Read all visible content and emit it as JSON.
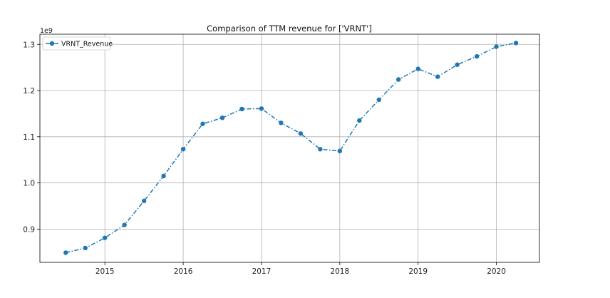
{
  "chart_data": {
    "type": "line",
    "title": "Comparison of TTM revenue for ['VRNT']",
    "xlabel": "",
    "ylabel": "",
    "y_offset_label": "1e9",
    "xlim": [
      2014.17,
      2020.55
    ],
    "ylim": [
      0.828,
      1.322
    ],
    "x_ticks": [
      2015,
      2016,
      2017,
      2018,
      2019,
      2020
    ],
    "x_tick_labels": [
      "2015",
      "2016",
      "2017",
      "2018",
      "2019",
      "2020"
    ],
    "y_ticks": [
      0.9,
      1.0,
      1.1,
      1.2,
      1.3
    ],
    "y_tick_labels": [
      "0.9",
      "1.0",
      "1.1",
      "1.2",
      "1.3"
    ],
    "grid": true,
    "legend_position": "top-left",
    "series": [
      {
        "name": "VRNT_Revenue",
        "color": "#1f77b4",
        "line_style": "dash-dot",
        "marker": "circle",
        "x": [
          2014.5,
          2014.75,
          2015.0,
          2015.25,
          2015.5,
          2015.75,
          2016.0,
          2016.25,
          2016.5,
          2016.75,
          2017.0,
          2017.25,
          2017.5,
          2017.75,
          2018.0,
          2018.25,
          2018.5,
          2018.75,
          2019.0,
          2019.25,
          2019.5,
          2019.75,
          2020.0,
          2020.25
        ],
        "values": [
          0.849,
          0.859,
          0.881,
          0.909,
          0.961,
          1.015,
          1.073,
          1.128,
          1.141,
          1.16,
          1.161,
          1.13,
          1.107,
          1.073,
          1.069,
          1.135,
          1.18,
          1.224,
          1.247,
          1.23,
          1.256,
          1.274,
          1.295,
          1.303
        ]
      }
    ]
  }
}
